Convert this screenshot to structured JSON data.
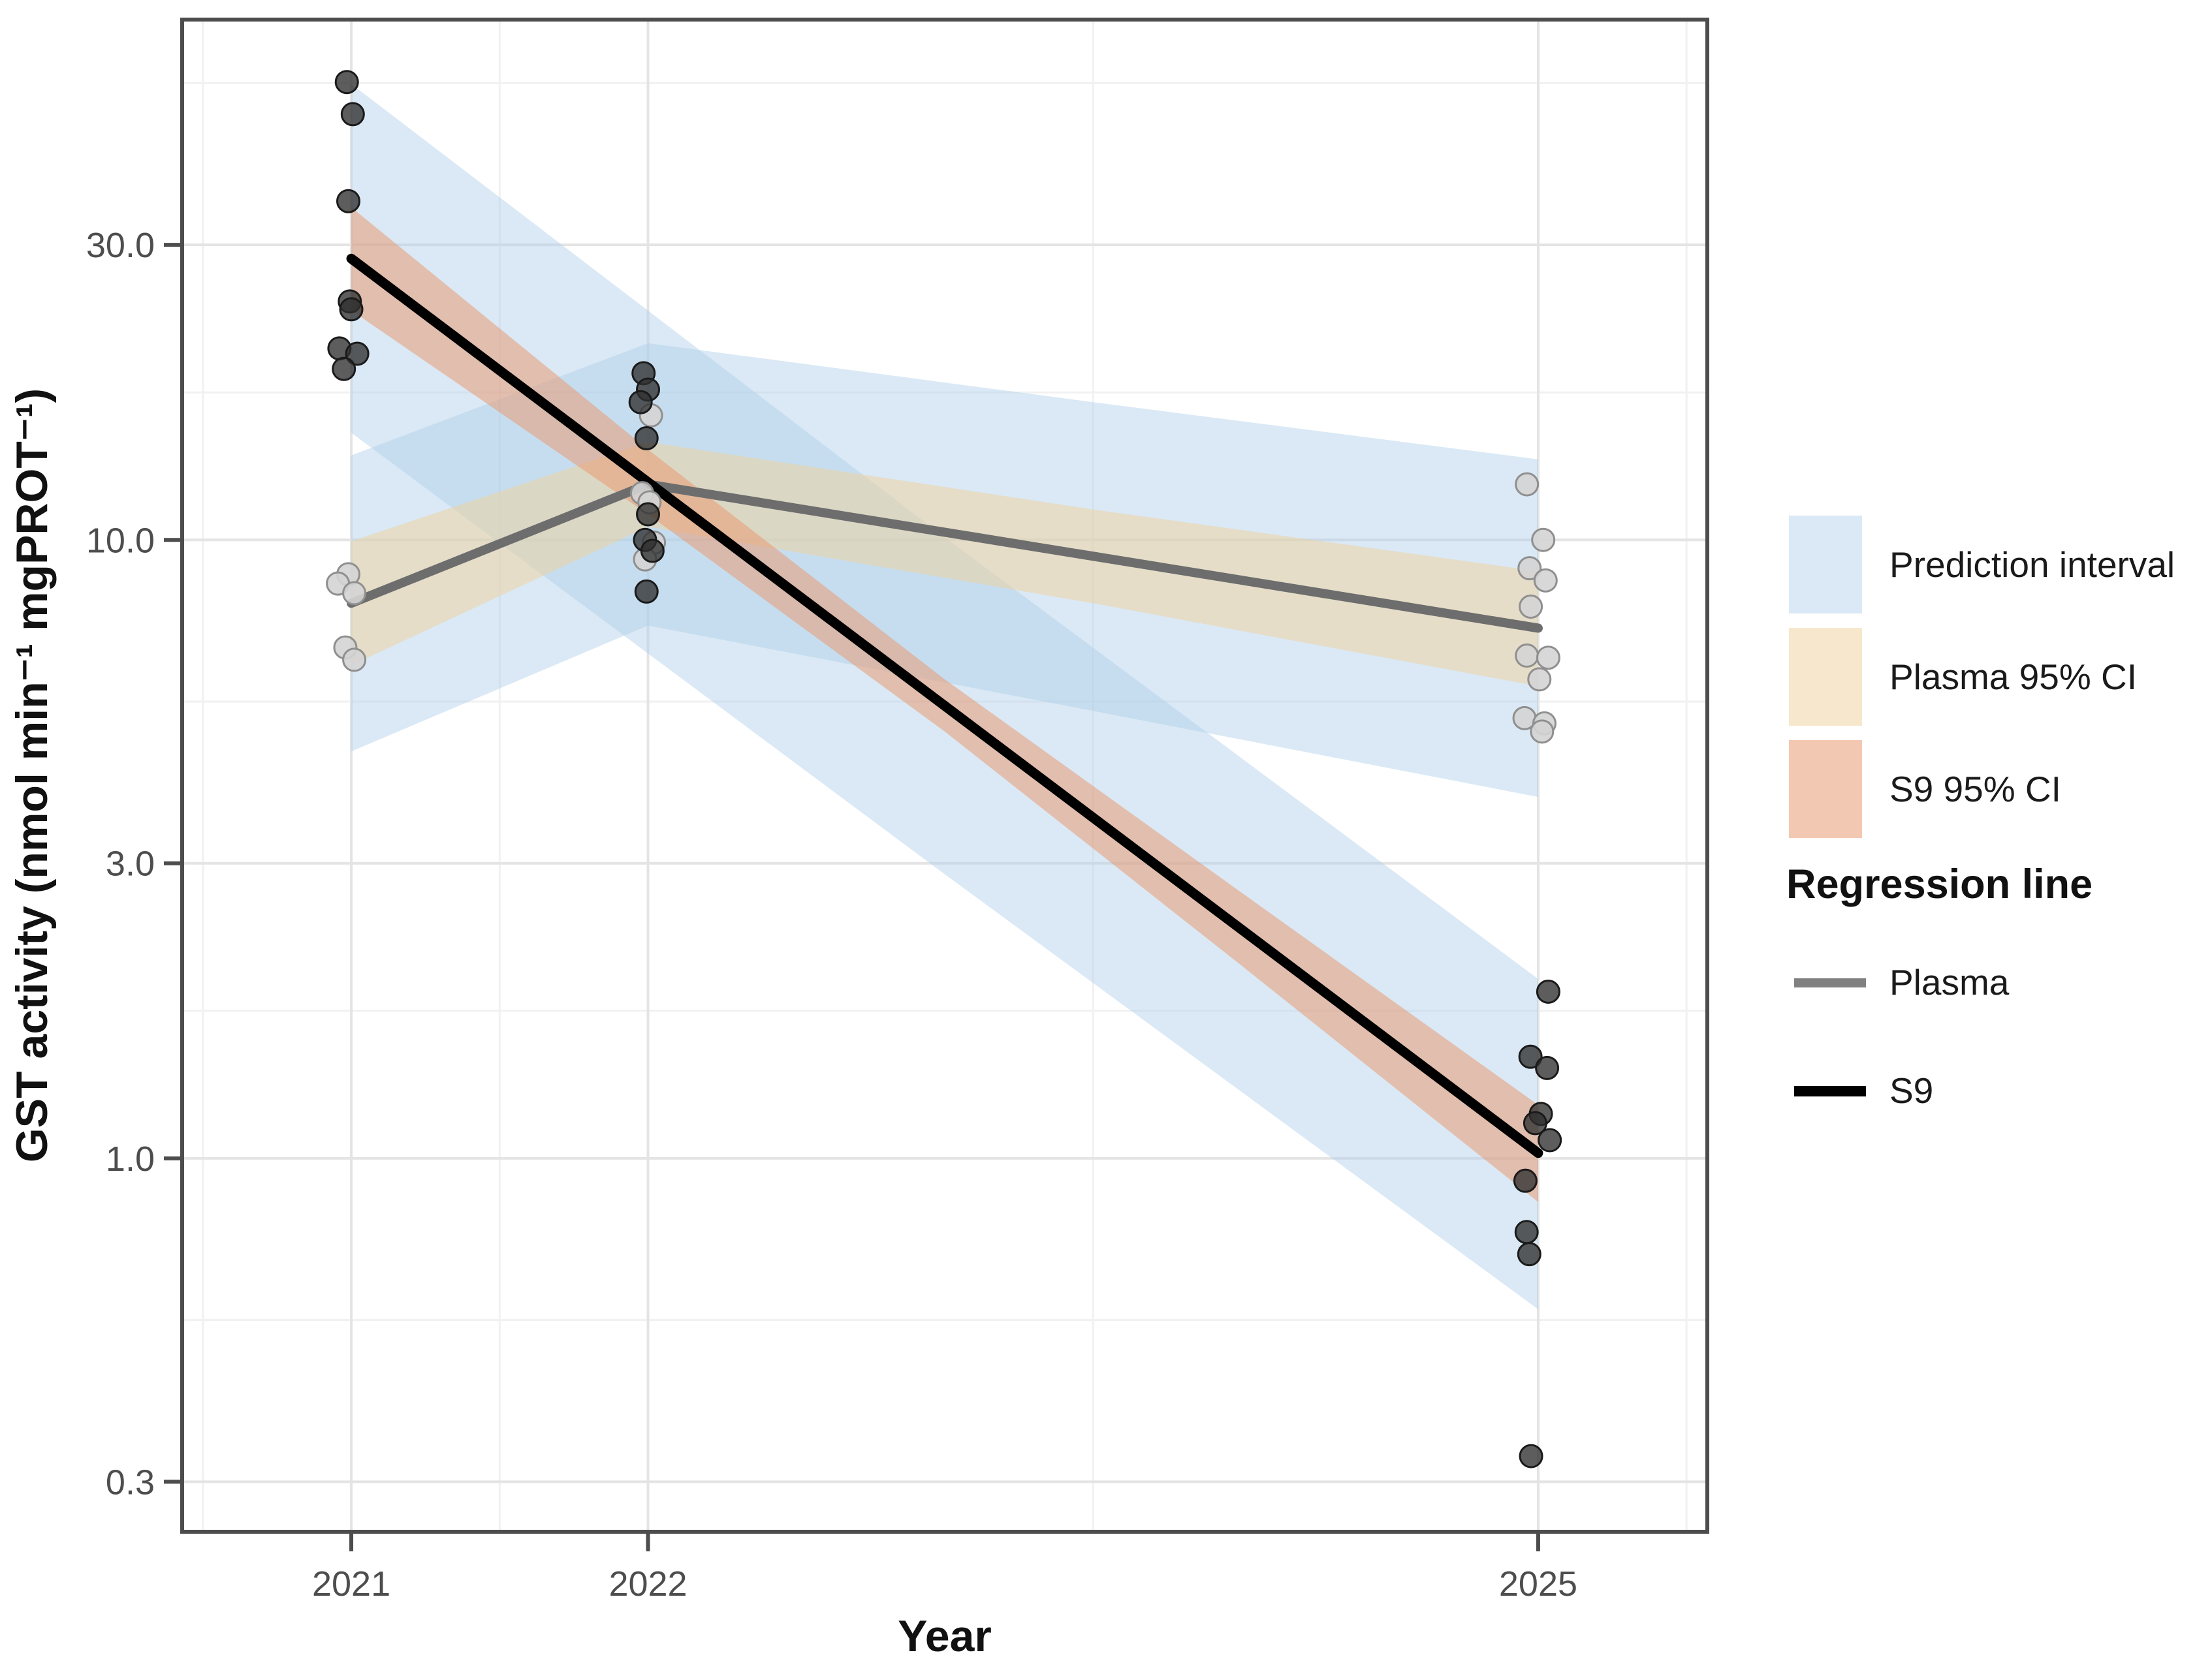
{
  "chart_data": {
    "type": "scatter",
    "title": "",
    "xlabel": "Year",
    "ylabel": "GST activity (nmol min⁻¹ mgPROT⁻¹)",
    "x_scale": "linear",
    "y_scale": "log10",
    "x_domain": [
      2020.43,
      2025.57
    ],
    "y_domain": [
      0.249,
      69.4
    ],
    "grid": {
      "major_color": "#e4e4e4",
      "minor_color": "#f1f1f1",
      "panel_border_color": "#4d4d4d",
      "tick_color": "#4d4d4d"
    },
    "x_ticks": [
      {
        "v": 2021,
        "label": "2021"
      },
      {
        "v": 2022,
        "label": "2022"
      },
      {
        "v": 2025,
        "label": "2025"
      }
    ],
    "x_minor": [
      2020.5,
      2021.5,
      2023.5,
      2025.5
    ],
    "y_ticks": [
      {
        "v": 30,
        "label": "30.0"
      },
      {
        "v": 10,
        "label": "10.0"
      },
      {
        "v": 3,
        "label": "3.0"
      },
      {
        "v": 1,
        "label": "1.0"
      },
      {
        "v": 0.3,
        "label": "0.3"
      }
    ],
    "y_minor": [
      54.77,
      17.32,
      5.477,
      1.732,
      0.5477
    ],
    "bands": [
      {
        "name": "s9-prediction-interval",
        "fill": "#aecfe9",
        "opacity": 0.45,
        "x": [
          2021,
          2023,
          2025
        ],
        "hi": [
          54.6,
          10.1,
          1.95
        ],
        "lo": [
          14.9,
          2.88,
          0.57
        ]
      },
      {
        "name": "plasma-prediction-interval",
        "fill": "#aecfe9",
        "opacity": 0.45,
        "x": [
          2021,
          2022,
          2023.5,
          2025
        ],
        "hi": [
          13.7,
          20.8,
          16.7,
          13.5
        ],
        "lo": [
          4.55,
          7.27,
          5.29,
          3.84
        ]
      },
      {
        "name": "plasma-95-ci",
        "fill": "#f0d29b",
        "opacity": 0.5,
        "x": [
          2021,
          2022,
          2023.5,
          2025
        ],
        "hi": [
          9.95,
          14.4,
          11.2,
          8.9
        ],
        "lo": [
          6.27,
          10.5,
          7.9,
          5.8
        ]
      },
      {
        "name": "s9-95-ci",
        "fill": "#ea9b72",
        "opacity": 0.55,
        "x": [
          2021,
          2022,
          2023,
          2024,
          2025
        ],
        "hi": [
          34.5,
          14.0,
          5.95,
          2.69,
          1.22
        ],
        "lo": [
          23.5,
          11.0,
          4.9,
          2.05,
          0.85
        ]
      }
    ],
    "lines": [
      {
        "name": "plasma-regression-line",
        "color": "#6d6d6d",
        "width": 14,
        "pts": [
          [
            2021,
            7.9
          ],
          [
            2022,
            12.3
          ],
          [
            2025,
            7.2
          ]
        ]
      },
      {
        "name": "s9-regression-line",
        "color": "#000000",
        "width": 15,
        "pts": [
          [
            2021,
            28.5
          ],
          [
            2025,
            1.02
          ]
        ]
      }
    ],
    "points": {
      "plasma": {
        "fill": "#d4d4d4",
        "stroke": "#8f8f8f",
        "opacity": 0.9,
        "r": 17,
        "data": [
          [
            2020.99,
            8.8
          ],
          [
            2020.955,
            8.5
          ],
          [
            2021.01,
            8.2
          ],
          [
            2020.98,
            6.7
          ],
          [
            2021.01,
            6.4
          ],
          [
            2022.01,
            15.9
          ],
          [
            2021.98,
            11.9
          ],
          [
            2022.005,
            11.5
          ],
          [
            2022.02,
            9.9
          ],
          [
            2021.99,
            9.3
          ],
          [
            2024.962,
            12.3
          ],
          [
            2025.017,
            10.0
          ],
          [
            2024.971,
            9.0
          ],
          [
            2025.025,
            8.6
          ],
          [
            2024.975,
            7.8
          ],
          [
            2024.962,
            6.5
          ],
          [
            2025.034,
            6.45
          ],
          [
            2025.004,
            5.95
          ],
          [
            2024.954,
            5.15
          ],
          [
            2025.021,
            5.05
          ],
          [
            2025.013,
            4.9
          ]
        ]
      },
      "s9": {
        "fill": "#2f2f2f",
        "stroke": "#1a1a1a",
        "opacity": 0.78,
        "r": 17,
        "data": [
          [
            2020.985,
            55.0
          ],
          [
            2021.005,
            48.8
          ],
          [
            2020.99,
            35.3
          ],
          [
            2020.995,
            24.3
          ],
          [
            2021.0,
            23.6
          ],
          [
            2020.96,
            20.4
          ],
          [
            2021.02,
            20.0
          ],
          [
            2020.975,
            18.9
          ],
          [
            2021.985,
            18.6
          ],
          [
            2022.0,
            17.5
          ],
          [
            2021.975,
            16.7
          ],
          [
            2021.995,
            14.6
          ],
          [
            2022.0,
            11.0
          ],
          [
            2021.99,
            10.0
          ],
          [
            2022.015,
            9.6
          ],
          [
            2021.995,
            8.25
          ],
          [
            2025.034,
            1.86
          ],
          [
            2024.974,
            1.46
          ],
          [
            2025.03,
            1.4
          ],
          [
            2025.009,
            1.18
          ],
          [
            2024.99,
            1.14
          ],
          [
            2025.039,
            1.07
          ],
          [
            2024.957,
            0.92
          ],
          [
            2024.961,
            0.76
          ],
          [
            2024.97,
            0.7
          ],
          [
            2024.976,
            0.33
          ]
        ]
      }
    },
    "legend_fill": {
      "items": [
        {
          "label": "Prediction interval",
          "fill": "#aecfe9",
          "opacity": 0.45
        },
        {
          "label": "Plasma 95% CI",
          "fill": "#f0d29b",
          "opacity": 0.5
        },
        {
          "label": "S9 95% CI",
          "fill": "#ea9b72",
          "opacity": 0.55
        }
      ]
    },
    "legend_line": {
      "title": "Regression line",
      "items": [
        {
          "label": "Plasma",
          "color": "#808080",
          "width": 14
        },
        {
          "label": "S9",
          "color": "#000000",
          "width": 16
        }
      ]
    }
  }
}
